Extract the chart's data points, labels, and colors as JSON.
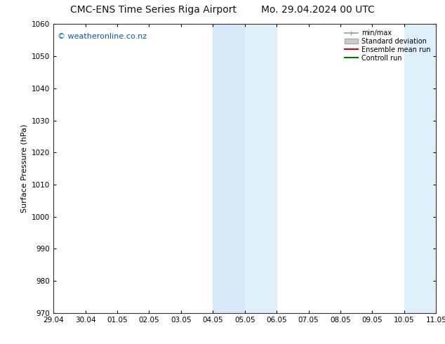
{
  "title_left": "CMC-ENS Time Series Riga Airport",
  "title_right": "Mo. 29.04.2024 00 UTC",
  "ylabel": "Surface Pressure (hPa)",
  "ylim": [
    970,
    1060
  ],
  "yticks": [
    970,
    980,
    990,
    1000,
    1010,
    1020,
    1030,
    1040,
    1050,
    1060
  ],
  "xtick_labels": [
    "29.04",
    "30.04",
    "01.05",
    "02.05",
    "03.05",
    "04.05",
    "05.05",
    "06.05",
    "07.05",
    "08.05",
    "09.05",
    "10.05",
    "11.05"
  ],
  "xtick_positions": [
    0,
    1,
    2,
    3,
    4,
    5,
    6,
    7,
    8,
    9,
    10,
    11,
    12
  ],
  "shade1_xmin": 5,
  "shade1_xmax": 6,
  "shade1_color": "#d6e9f8",
  "shade2_xmin": 6,
  "shade2_xmax": 7,
  "shade2_color": "#dff0fb",
  "shade3_xmin": 11,
  "shade3_xmax": 12,
  "shade3_color": "#dff0fb",
  "watermark": "© weatheronline.co.nz",
  "watermark_color": "#0055cc",
  "bg_color": "#ffffff",
  "legend_entries": [
    "min/max",
    "Standard deviation",
    "Ensemble mean run",
    "Controll run"
  ],
  "minmax_line_color": "#999999",
  "std_fill_color": "#cccccc",
  "ensemble_color": "#dd0000",
  "control_color": "#007700",
  "title_fontsize": 10,
  "label_fontsize": 8,
  "tick_fontsize": 7.5
}
